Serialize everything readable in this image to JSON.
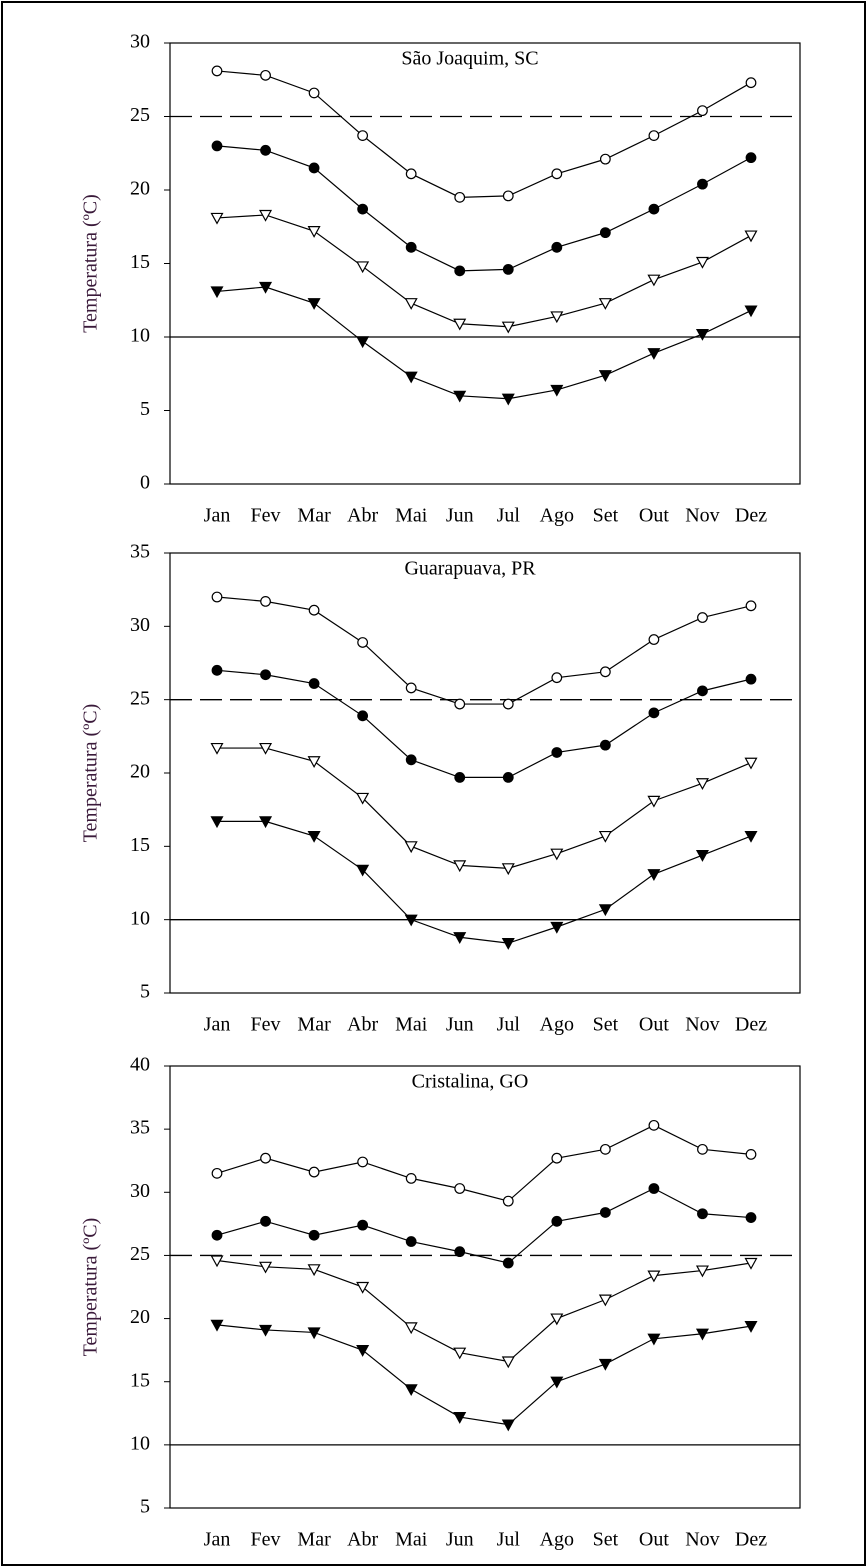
{
  "chart_data": [
    {
      "type": "line",
      "title": "São Joaquim, SC",
      "ylabel": "Temperatura (ºC)",
      "categories": [
        "Jan",
        "Fev",
        "Mar",
        "Abr",
        "Mai",
        "Jun",
        "Jul",
        "Ago",
        "Set",
        "Out",
        "Nov",
        "Dez"
      ],
      "ylim": [
        0,
        30
      ],
      "yticks": [
        0,
        5,
        10,
        15,
        20,
        25,
        30
      ],
      "hlines": [
        {
          "value": 25,
          "style": "dashed"
        },
        {
          "value": 10,
          "style": "solid"
        }
      ],
      "series": [
        {
          "marker": "circle-open",
          "color": "#000000",
          "values": [
            28.1,
            27.8,
            26.6,
            23.7,
            21.1,
            19.5,
            19.6,
            21.1,
            22.1,
            23.7,
            25.4,
            27.3
          ]
        },
        {
          "marker": "circle-filled",
          "color": "#000000",
          "values": [
            23.0,
            22.7,
            21.5,
            18.7,
            16.1,
            14.5,
            14.6,
            16.1,
            17.1,
            18.7,
            20.4,
            22.2
          ]
        },
        {
          "marker": "triangle-open",
          "color": "#000000",
          "values": [
            18.1,
            18.3,
            17.2,
            14.8,
            12.3,
            10.9,
            10.7,
            11.4,
            12.3,
            13.9,
            15.1,
            16.9
          ]
        },
        {
          "marker": "triangle-filled",
          "color": "#000000",
          "values": [
            13.1,
            13.4,
            12.3,
            9.7,
            7.3,
            6.0,
            5.8,
            6.4,
            7.4,
            8.9,
            10.2,
            11.8
          ]
        }
      ]
    },
    {
      "type": "line",
      "title": "Guarapuava, PR",
      "ylabel": "Temperatura (ºC)",
      "categories": [
        "Jan",
        "Fev",
        "Mar",
        "Abr",
        "Mai",
        "Jun",
        "Jul",
        "Ago",
        "Set",
        "Out",
        "Nov",
        "Dez"
      ],
      "ylim": [
        5,
        35
      ],
      "yticks": [
        5,
        10,
        15,
        20,
        25,
        30,
        35
      ],
      "hlines": [
        {
          "value": 25,
          "style": "dashed"
        },
        {
          "value": 10,
          "style": "solid"
        }
      ],
      "series": [
        {
          "marker": "circle-open",
          "color": "#000000",
          "values": [
            32.0,
            31.7,
            31.1,
            28.9,
            25.8,
            24.7,
            24.7,
            26.5,
            26.9,
            29.1,
            30.6,
            31.4
          ]
        },
        {
          "marker": "circle-filled",
          "color": "#000000",
          "values": [
            27.0,
            26.7,
            26.1,
            23.9,
            20.9,
            19.7,
            19.7,
            21.4,
            21.9,
            24.1,
            25.6,
            26.4
          ]
        },
        {
          "marker": "triangle-open",
          "color": "#000000",
          "values": [
            21.7,
            21.7,
            20.8,
            18.3,
            15.0,
            13.7,
            13.5,
            14.5,
            15.7,
            18.1,
            19.3,
            20.7
          ]
        },
        {
          "marker": "triangle-filled",
          "color": "#000000",
          "values": [
            16.7,
            16.7,
            15.7,
            13.4,
            10.0,
            8.8,
            8.4,
            9.5,
            10.7,
            13.1,
            14.4,
            15.7
          ]
        }
      ]
    },
    {
      "type": "line",
      "title": "Cristalina, GO",
      "ylabel": "Temperatura (ºC)",
      "categories": [
        "Jan",
        "Fev",
        "Mar",
        "Abr",
        "Mai",
        "Jun",
        "Jul",
        "Ago",
        "Set",
        "Out",
        "Nov",
        "Dez"
      ],
      "ylim": [
        5,
        40
      ],
      "yticks": [
        5,
        10,
        15,
        20,
        25,
        30,
        35,
        40
      ],
      "hlines": [
        {
          "value": 25,
          "style": "dashed"
        },
        {
          "value": 10,
          "style": "solid"
        }
      ],
      "series": [
        {
          "marker": "circle-open",
          "color": "#000000",
          "values": [
            31.5,
            32.7,
            31.6,
            32.4,
            31.1,
            30.3,
            29.3,
            32.7,
            33.4,
            35.3,
            33.4,
            33.0
          ]
        },
        {
          "marker": "circle-filled",
          "color": "#000000",
          "values": [
            26.6,
            27.7,
            26.6,
            27.4,
            26.1,
            25.3,
            24.4,
            27.7,
            28.4,
            30.3,
            28.3,
            28.0
          ]
        },
        {
          "marker": "triangle-open",
          "color": "#000000",
          "values": [
            24.6,
            24.1,
            23.9,
            22.5,
            19.3,
            17.3,
            16.6,
            20.0,
            21.5,
            23.4,
            23.8,
            24.4
          ]
        },
        {
          "marker": "triangle-filled",
          "color": "#000000",
          "values": [
            19.5,
            19.1,
            18.9,
            17.5,
            14.4,
            12.2,
            11.6,
            15.0,
            16.4,
            18.4,
            18.8,
            19.4
          ]
        }
      ]
    }
  ]
}
